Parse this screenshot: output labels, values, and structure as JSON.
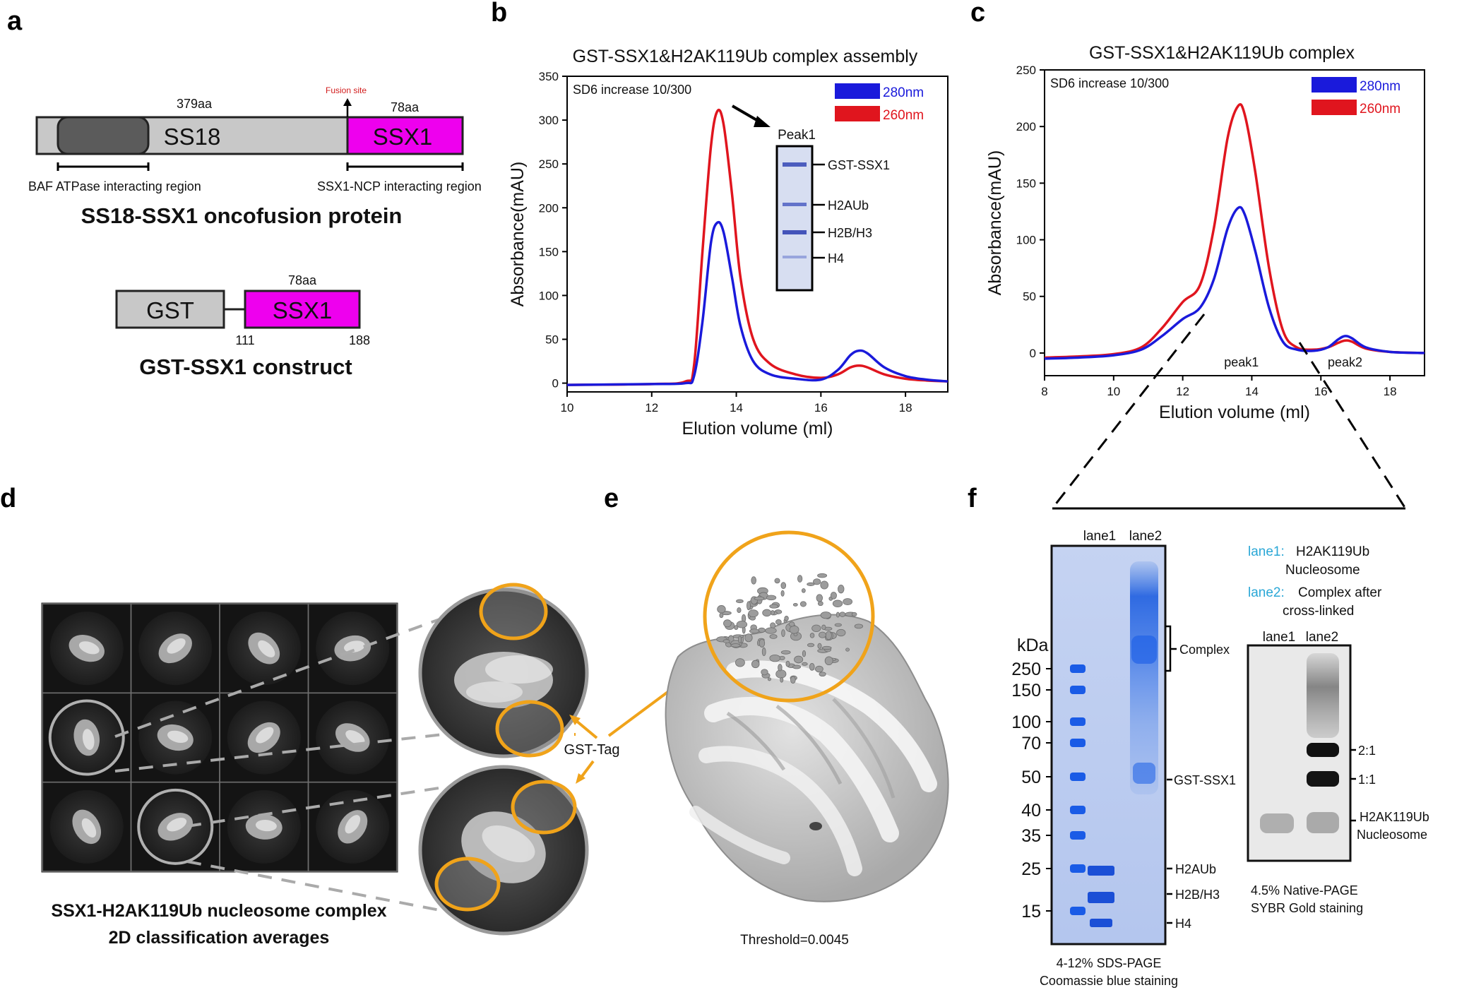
{
  "panels": {
    "a": {
      "letter": "a",
      "ss18": {
        "aa": "379aa",
        "name": "SS18",
        "fusion_site": "Fusion site"
      },
      "ssx1": {
        "aa": "78aa",
        "name": "SSX1"
      },
      "baf_region": "BAF ATPase interacting region",
      "ncp_region": "SSX1-NCP interacting region",
      "title1": "SS18-SSX1 oncofusion protein",
      "gst_box": "GST",
      "ssx1_box": "SSX1",
      "construct_aa": "78aa",
      "start": "111",
      "end": "188",
      "title2": "GST-SSX1 construct"
    },
    "b": {
      "letter": "b",
      "peak_label": "Peak1",
      "gel_bands": [
        "GST-SSX1",
        "H2AUb",
        "H2B/H3",
        "H4"
      ]
    },
    "c": {
      "letter": "c"
    },
    "d": {
      "letter": "d",
      "gst_tag": "GST-Tag",
      "caption1": "SSX1-H2AK119Ub nucleosome complex",
      "caption2": "2D classification averages"
    },
    "e": {
      "letter": "e",
      "threshold": "Threshold=0.0045"
    },
    "f": {
      "letter": "f",
      "sds": {
        "lane1": "lane1",
        "lane2": "lane2",
        "kda": "kDa",
        "markers": [
          "250",
          "150",
          "100",
          "70",
          "50",
          "40",
          "35",
          "25",
          "15"
        ],
        "complex": "Complex",
        "gst_ssx1": "GST-SSX1",
        "h2aub": "H2AUb",
        "h2bh3": "H2B/H3",
        "h4": "H4",
        "caption1": "4-12% SDS-PAGE",
        "caption2": "Coomassie blue staining"
      },
      "legend": {
        "lane1_key": "lane1:",
        "lane1_line1": "H2AK119Ub",
        "lane1_line2": "Nucleosome",
        "lane2_key": "lane2:",
        "lane2_line1": "Complex after",
        "lane2_line2": "cross-linked"
      },
      "native": {
        "lane1": "lane1",
        "lane2": "lane2",
        "band21": "2:1",
        "band11": "1:1",
        "nuc1": "H2AK119Ub",
        "nuc2": "Nucleosome",
        "caption1": "4.5% Native-PAGE",
        "caption2": "SYBR Gold staining"
      }
    }
  },
  "chart_data": [
    {
      "id": "b",
      "type": "line",
      "title": "GST-SSX1&H2AK119Ub complex assembly",
      "annotation": "SD6 increase 10/300",
      "xlabel": "Elution volume (ml)",
      "ylabel": "Absorbance(mAU)",
      "xlim": [
        10,
        19
      ],
      "ylim": [
        -10,
        350
      ],
      "xticks": [
        10,
        12,
        14,
        16,
        18
      ],
      "yticks": [
        0,
        50,
        100,
        150,
        200,
        250,
        300,
        350
      ],
      "legend_position": "top-right",
      "series": [
        {
          "name": "280nm",
          "color": "#1a1adb",
          "points": [
            [
              10,
              -2
            ],
            [
              12,
              -1
            ],
            [
              12.8,
              0
            ],
            [
              13.0,
              8
            ],
            [
              13.2,
              70
            ],
            [
              13.4,
              160
            ],
            [
              13.55,
              183
            ],
            [
              13.7,
              172
            ],
            [
              13.9,
              120
            ],
            [
              14.1,
              65
            ],
            [
              14.4,
              25
            ],
            [
              14.8,
              10
            ],
            [
              15.4,
              5
            ],
            [
              16.0,
              4
            ],
            [
              16.4,
              15
            ],
            [
              16.7,
              32
            ],
            [
              16.9,
              37
            ],
            [
              17.1,
              34
            ],
            [
              17.5,
              18
            ],
            [
              18,
              8
            ],
            [
              18.5,
              4
            ],
            [
              19,
              2
            ]
          ]
        },
        {
          "name": "260nm",
          "color": "#e0151e",
          "points": [
            [
              10,
              -2
            ],
            [
              12,
              -1
            ],
            [
              12.8,
              2
            ],
            [
              13.0,
              20
            ],
            [
              13.2,
              150
            ],
            [
              13.4,
              270
            ],
            [
              13.55,
              310
            ],
            [
              13.7,
              295
            ],
            [
              13.9,
              215
            ],
            [
              14.1,
              120
            ],
            [
              14.4,
              50
            ],
            [
              14.8,
              22
            ],
            [
              15.4,
              10
            ],
            [
              16.0,
              6
            ],
            [
              16.4,
              10
            ],
            [
              16.7,
              18
            ],
            [
              16.9,
              20
            ],
            [
              17.1,
              18
            ],
            [
              17.5,
              10
            ],
            [
              18,
              5
            ],
            [
              18.5,
              3
            ],
            [
              19,
              2
            ]
          ]
        }
      ]
    },
    {
      "id": "c",
      "type": "line",
      "title": "GST-SSX1&H2AK119Ub complex",
      "annotation": "SD6 increase 10/300",
      "xlabel": "Elution volume (ml)",
      "ylabel": "Absorbance(mAU)",
      "xlim": [
        8,
        19
      ],
      "ylim": [
        -20,
        250
      ],
      "xticks": [
        8,
        10,
        12,
        14,
        16,
        18
      ],
      "yticks": [
        0,
        50,
        100,
        150,
        200,
        250
      ],
      "legend_position": "top-right",
      "peak_labels": [
        {
          "text": "peak1",
          "x": 13.7
        },
        {
          "text": "peak2",
          "x": 16.7
        }
      ],
      "series": [
        {
          "name": "280nm",
          "color": "#1a1adb",
          "points": [
            [
              8,
              -5
            ],
            [
              9,
              -4
            ],
            [
              10,
              -2
            ],
            [
              10.8,
              3
            ],
            [
              11.4,
              15
            ],
            [
              12,
              30
            ],
            [
              12.5,
              40
            ],
            [
              12.9,
              65
            ],
            [
              13.3,
              110
            ],
            [
              13.6,
              128
            ],
            [
              13.8,
              122
            ],
            [
              14.1,
              90
            ],
            [
              14.5,
              40
            ],
            [
              14.9,
              10
            ],
            [
              15.3,
              3
            ],
            [
              15.8,
              2
            ],
            [
              16.2,
              5
            ],
            [
              16.5,
              12
            ],
            [
              16.7,
              15
            ],
            [
              16.9,
              13
            ],
            [
              17.3,
              5
            ],
            [
              18,
              1
            ],
            [
              19,
              0
            ]
          ]
        },
        {
          "name": "260nm",
          "color": "#e0151e",
          "points": [
            [
              8,
              -4
            ],
            [
              9,
              -3
            ],
            [
              10,
              -1
            ],
            [
              10.8,
              5
            ],
            [
              11.4,
              22
            ],
            [
              12,
              45
            ],
            [
              12.5,
              60
            ],
            [
              12.9,
              110
            ],
            [
              13.3,
              190
            ],
            [
              13.6,
              218
            ],
            [
              13.8,
              210
            ],
            [
              14.1,
              160
            ],
            [
              14.5,
              75
            ],
            [
              14.9,
              20
            ],
            [
              15.3,
              5
            ],
            [
              15.8,
              3
            ],
            [
              16.2,
              5
            ],
            [
              16.5,
              9
            ],
            [
              16.7,
              11
            ],
            [
              16.9,
              10
            ],
            [
              17.3,
              4
            ],
            [
              18,
              1
            ],
            [
              19,
              0
            ]
          ]
        }
      ]
    }
  ]
}
